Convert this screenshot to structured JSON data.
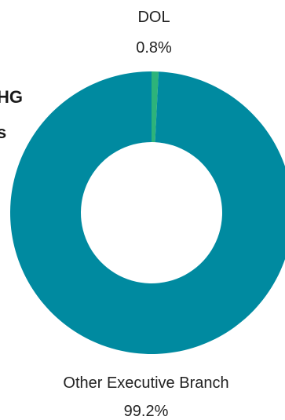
{
  "chart_data": {
    "type": "pie",
    "donut": true,
    "title_fragment": [
      "HG",
      "s"
    ],
    "series": [
      {
        "name": "DOL",
        "value": 0.8,
        "value_label": "0.8%",
        "color": "#2db37a"
      },
      {
        "name": "Other Executive Branch",
        "value": 99.2,
        "value_label": "99.2%",
        "color": "#008aa0"
      }
    ]
  }
}
